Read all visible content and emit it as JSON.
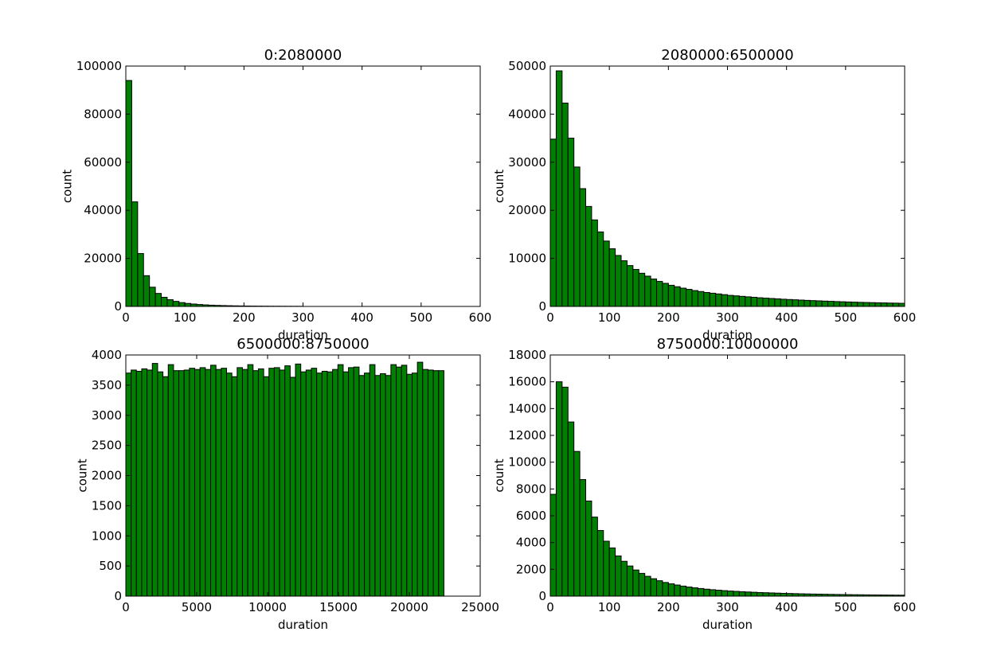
{
  "chart_data": [
    {
      "type": "bar",
      "title": "0:2080000",
      "xlabel": "duration",
      "ylabel": "count",
      "xlim": [
        0,
        600
      ],
      "ylim": [
        0,
        100000
      ],
      "xticks": [
        "0",
        "100",
        "200",
        "300",
        "400",
        "500",
        "600"
      ],
      "yticks": [
        "0",
        "20000",
        "40000",
        "60000",
        "80000",
        "100000"
      ],
      "bin_width": 10,
      "bin_start": 0,
      "values": [
        94000,
        43500,
        22000,
        12800,
        8000,
        5400,
        3800,
        2800,
        2100,
        1600,
        1250,
        1000,
        800,
        650,
        520,
        430,
        360,
        300,
        250,
        210,
        180,
        150,
        130,
        110,
        95,
        85,
        75,
        65,
        60,
        55
      ],
      "color": "#008000",
      "grid": false
    },
    {
      "type": "bar",
      "title": "2080000:6500000",
      "xlabel": "duration",
      "ylabel": "count",
      "xlim": [
        0,
        600
      ],
      "ylim": [
        0,
        50000
      ],
      "xticks": [
        "0",
        "100",
        "200",
        "300",
        "400",
        "500",
        "600"
      ],
      "yticks": [
        "0",
        "10000",
        "20000",
        "30000",
        "40000",
        "50000"
      ],
      "bin_width": 10,
      "bin_start": 0,
      "values": [
        34800,
        49000,
        42300,
        35000,
        29000,
        24500,
        20800,
        18000,
        15500,
        13600,
        12000,
        10600,
        9500,
        8500,
        7700,
        6900,
        6300,
        5700,
        5200,
        4800,
        4400,
        4100,
        3800,
        3550,
        3300,
        3100,
        2900,
        2750,
        2600,
        2450,
        2300,
        2200,
        2100,
        2000,
        1900,
        1800,
        1720,
        1650,
        1580,
        1500,
        1440,
        1380,
        1320,
        1260,
        1210,
        1160,
        1110,
        1060,
        1010,
        970,
        930,
        890,
        850,
        820,
        790,
        760,
        730,
        700,
        680,
        650
      ],
      "color": "#008000",
      "grid": false
    },
    {
      "type": "bar",
      "title": "6500000:8750000",
      "xlabel": "duration",
      "ylabel": "count",
      "xlim": [
        0,
        25000
      ],
      "ylim": [
        0,
        4000
      ],
      "xticks": [
        "0",
        "5000",
        "10000",
        "15000",
        "20000",
        "25000"
      ],
      "yticks": [
        "0",
        "500",
        "1000",
        "1500",
        "2000",
        "2500",
        "3000",
        "3500",
        "4000"
      ],
      "bin_width": 374,
      "bin_start": 0,
      "values": [
        3700,
        3750,
        3730,
        3770,
        3750,
        3860,
        3720,
        3640,
        3840,
        3740,
        3740,
        3750,
        3780,
        3760,
        3790,
        3760,
        3830,
        3760,
        3780,
        3700,
        3640,
        3790,
        3760,
        3840,
        3740,
        3770,
        3640,
        3780,
        3790,
        3750,
        3820,
        3630,
        3850,
        3720,
        3750,
        3780,
        3700,
        3730,
        3720,
        3760,
        3840,
        3720,
        3790,
        3800,
        3660,
        3700,
        3840,
        3660,
        3690,
        3660,
        3840,
        3800,
        3830,
        3680,
        3700,
        3880,
        3760,
        3750,
        3740,
        3740
      ],
      "color": "#008000",
      "grid": false
    },
    {
      "type": "bar",
      "title": "8750000:10000000",
      "xlabel": "duration",
      "ylabel": "count",
      "xlim": [
        0,
        600
      ],
      "ylim": [
        0,
        18000
      ],
      "xticks": [
        "0",
        "100",
        "200",
        "300",
        "400",
        "500",
        "600"
      ],
      "yticks": [
        "0",
        "2000",
        "4000",
        "6000",
        "8000",
        "10000",
        "12000",
        "14000",
        "16000",
        "18000"
      ],
      "bin_width": 10,
      "bin_start": 0,
      "values": [
        7600,
        16000,
        15600,
        13000,
        10800,
        8700,
        7100,
        5900,
        4900,
        4100,
        3600,
        3000,
        2600,
        2250,
        1950,
        1700,
        1480,
        1300,
        1150,
        1020,
        920,
        830,
        750,
        680,
        620,
        570,
        520,
        480,
        445,
        410,
        380,
        355,
        330,
        310,
        290,
        270,
        255,
        240,
        225,
        210,
        198,
        186,
        175,
        165,
        156,
        148,
        140,
        132,
        125,
        119,
        113,
        107,
        102,
        97,
        92,
        88,
        84,
        80,
        76,
        73
      ],
      "color": "#008000",
      "grid": false
    }
  ]
}
